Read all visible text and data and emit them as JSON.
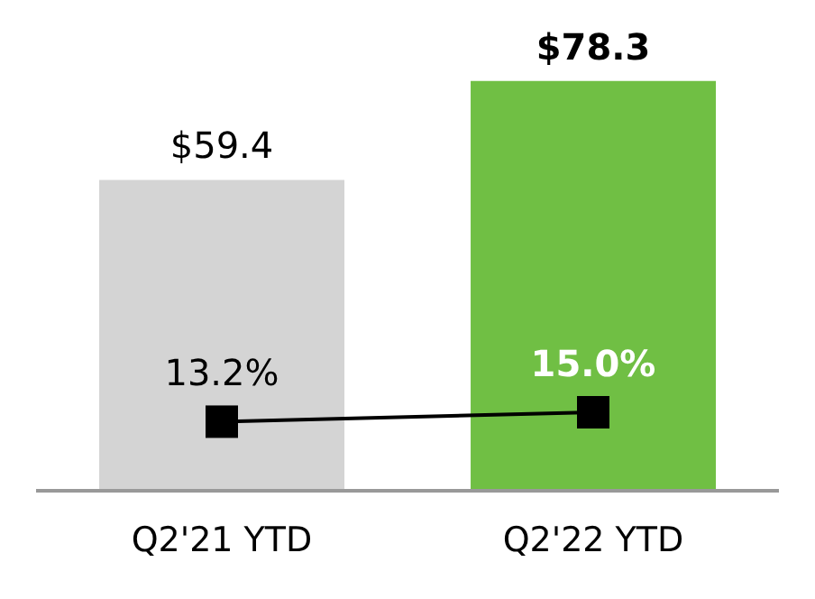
{
  "chart_data": {
    "type": "bar",
    "categories": [
      "Q2'21 YTD",
      "Q2'22 YTD"
    ],
    "series": [
      {
        "values": [
          59.4,
          78.3
        ],
        "colors": [
          "#d4d4d4",
          "#70bf44"
        ],
        "value_labels": [
          "$59.4",
          "$78.3"
        ]
      },
      {
        "type": "line",
        "color": "#000000",
        "values": [
          13.2,
          15.0
        ],
        "value_labels": [
          "13.2%",
          "15.0%"
        ]
      }
    ],
    "marker": "square",
    "tick_labels": "x"
  }
}
